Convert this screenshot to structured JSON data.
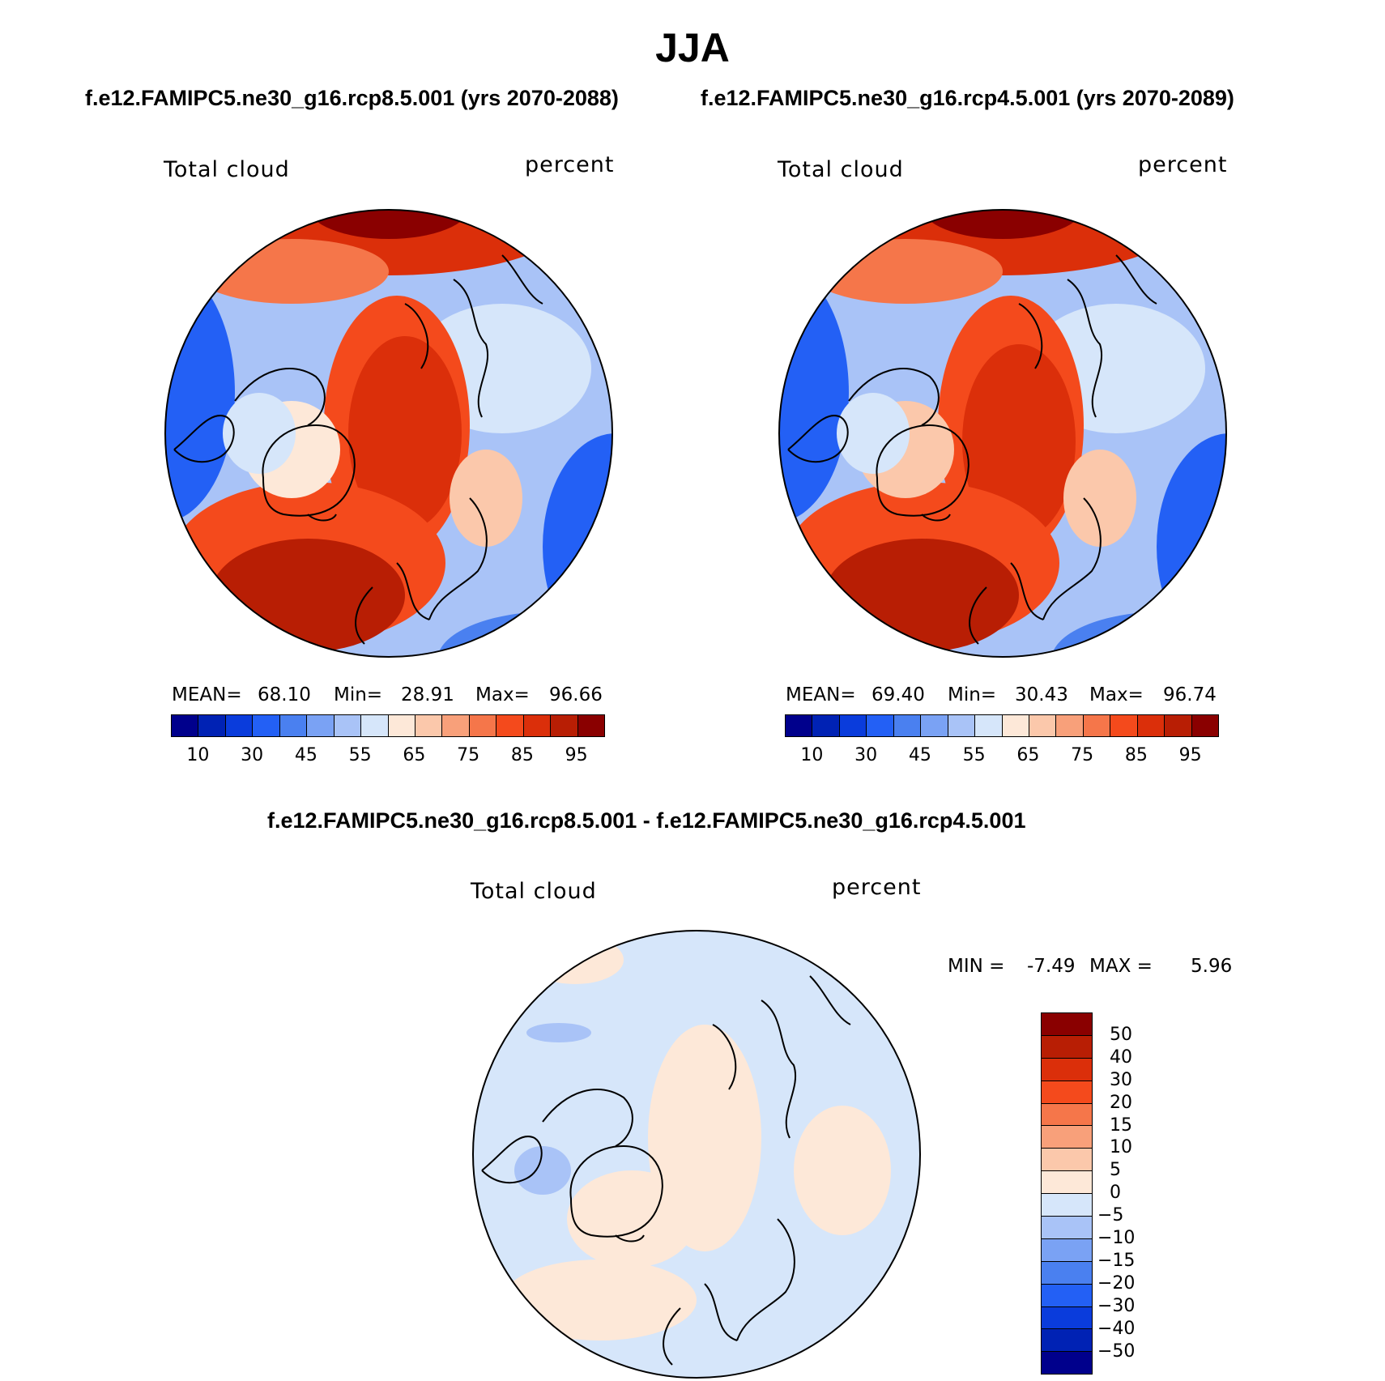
{
  "title": "JJA",
  "panels": [
    {
      "case": "f.e12.FAMIPC5.ne30_g16.rcp8.5.001 (yrs 2070-2088)",
      "variable": "Total cloud",
      "units": "percent",
      "stats": {
        "mean_label": "MEAN=",
        "mean": "68.10",
        "min_label": "Min=",
        "min": "28.91",
        "max_label": "Max=",
        "max": "96.66"
      },
      "colorbar_ticks": [
        "10",
        "30",
        "45",
        "55",
        "65",
        "75",
        "85",
        "95"
      ]
    },
    {
      "case": "f.e12.FAMIPC5.ne30_g16.rcp4.5.001 (yrs 2070-2089)",
      "variable": "Total cloud",
      "units": "percent",
      "stats": {
        "mean_label": "MEAN=",
        "mean": "69.40",
        "min_label": "Min=",
        "min": "30.43",
        "max_label": "Max=",
        "max": "96.74"
      },
      "colorbar_ticks": [
        "10",
        "30",
        "45",
        "55",
        "65",
        "75",
        "85",
        "95"
      ]
    }
  ],
  "diff": {
    "title": "f.e12.FAMIPC5.ne30_g16.rcp8.5.001 - f.e12.FAMIPC5.ne30_g16.rcp4.5.001",
    "variable": "Total cloud",
    "units": "percent",
    "min_label": "MIN =",
    "min": "-7.49",
    "max_label": "MAX =",
    "max": "5.96",
    "colorbar_ticks": [
      "50",
      "40",
      "30",
      "20",
      "15",
      "10",
      "5",
      "0",
      "-5",
      "-10",
      "-15",
      "-20",
      "-30",
      "-40",
      "-50"
    ]
  },
  "colors": {
    "abs_scale": [
      "#00008c",
      "#0022b4",
      "#0a3cdc",
      "#2360f5",
      "#4a80f0",
      "#7aa2f4",
      "#a9c3f7",
      "#d6e6fa",
      "#fde8d8",
      "#fbc8ab",
      "#f8a07a",
      "#f5764a",
      "#f44a1c",
      "#db2f0a",
      "#b81e04",
      "#8a0000"
    ],
    "diff_scale": [
      "#8a0000",
      "#b81e04",
      "#db2f0a",
      "#f44a1c",
      "#f5764a",
      "#f8a07a",
      "#fbc8ab",
      "#fde8d8",
      "#d6e6fa",
      "#a9c3f7",
      "#7aa2f4",
      "#4a80f0",
      "#2360f5",
      "#0a3cdc",
      "#0022b4",
      "#00008c"
    ]
  }
}
